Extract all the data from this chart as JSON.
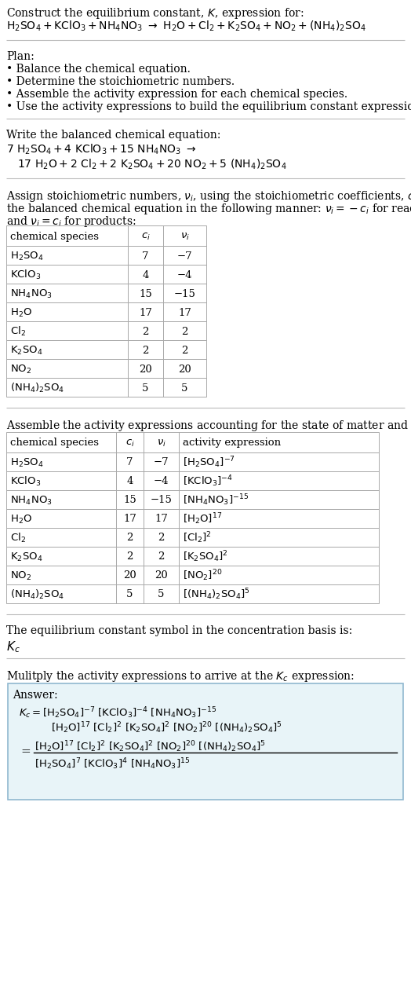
{
  "bg_color": "#ffffff",
  "text_color": "#000000",
  "separator_color": "#bbbbbb",
  "table_border_color": "#aaaaaa",
  "answer_box_bg": "#e8f4f8",
  "answer_box_border": "#90b8d0",
  "title": "Construct the equilibrium constant, K, expression for:",
  "plan_header": "Plan:",
  "plan_items": [
    "• Balance the chemical equation.",
    "• Determine the stoichiometric numbers.",
    "• Assemble the activity expression for each chemical species.",
    "• Use the activity expressions to build the equilibrium constant expression."
  ],
  "balanced_header": "Write the balanced chemical equation:",
  "stoich_para": "Assign stoichiometric numbers, $\\nu_i$, using the stoichiometric coefficients, $c_i$, from the balanced chemical equation in the following manner: $\\nu_i = -c_i$ for reactants and $\\nu_i = c_i$ for products:",
  "activity_header": "Assemble the activity expressions accounting for the state of matter and $\\nu_i$:",
  "kc_header": "The equilibrium constant symbol in the concentration basis is:",
  "multiply_header": "Mulitply the activity expressions to arrive at the $K_c$ expression:",
  "answer_label": "Answer:"
}
